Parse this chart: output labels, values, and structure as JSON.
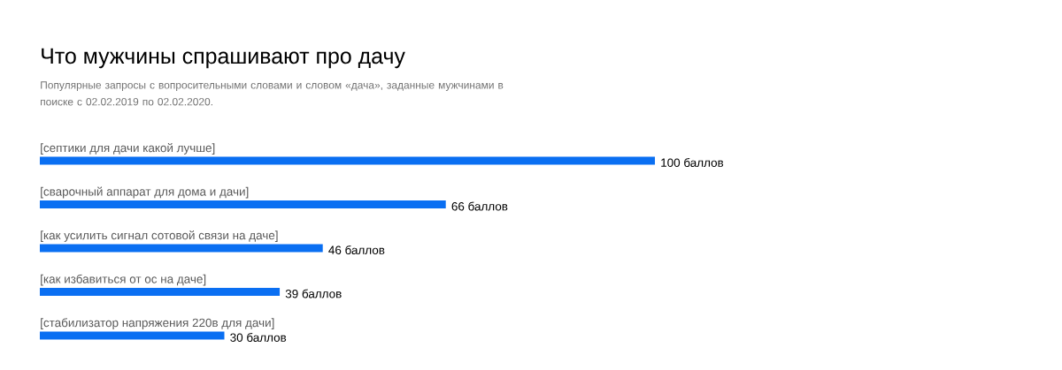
{
  "chart_data": {
    "type": "bar",
    "orientation": "horizontal",
    "title": "Что мужчины спрашивают про дачу",
    "subtitle": "Популярные запросы с вопросительными словами и словом «дача», заданные мужчинами в поиске с 02.02.2019 по 02.02.2020.",
    "categories": [
      "[септики для дачи какой лучше]",
      "[сварочный аппарат для дома и дачи]",
      "[как усилить сигнал сотовой связи на даче]",
      "[как избавиться от ос на даче]",
      "[стабилизатор напряжения 220в для дачи]"
    ],
    "values": [
      100,
      66,
      46,
      39,
      30
    ],
    "value_labels": [
      "100 баллов",
      "66 баллов",
      "46 баллов",
      "39 баллов",
      "30 баллов"
    ],
    "color": "#0a6ff2",
    "xlim": [
      0,
      100
    ]
  }
}
